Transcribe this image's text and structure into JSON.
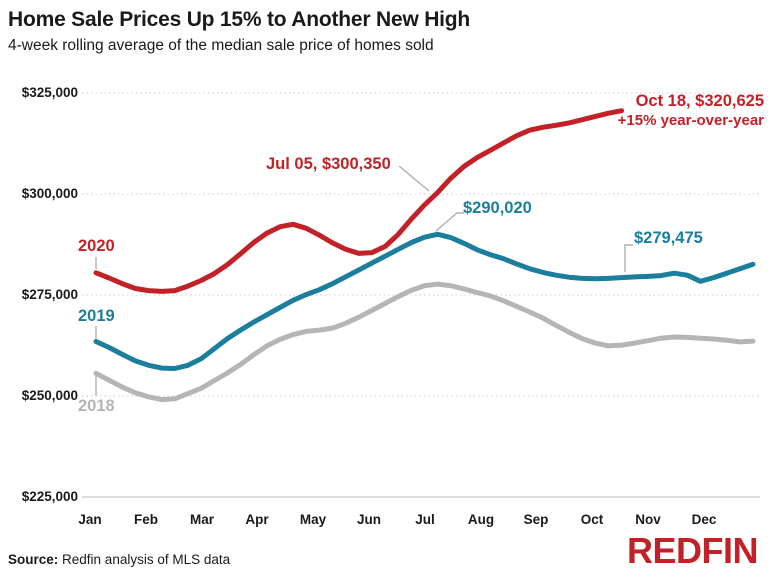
{
  "header": {
    "title": "Home Sale Prices Up 15% to Another New High",
    "subtitle": "4-week rolling average of the median sale price of homes sold"
  },
  "footer": {
    "source_label": "Source:",
    "source_text": "Redfin analysis of MLS data",
    "logo_text": "REDFIN"
  },
  "colors": {
    "red": "#c22127",
    "teal": "#1b7e9d",
    "gray": "#b5b5b5",
    "grid": "#d6d6d6",
    "axis_line": "#c8c8c8",
    "leader": "#b0b0b0",
    "text_dark": "#1a1a1a"
  },
  "chart_data": {
    "type": "line",
    "title": "Home Sale Prices Up 15% to Another New High",
    "subtitle": "4-week rolling average of the median sale price of homes sold",
    "xlabel": "",
    "ylabel": "",
    "grid": "dotted horizontal gridlines",
    "legend_position": "inline labels at left of each line",
    "ylim": [
      225000,
      325000
    ],
    "y_tick_labels": [
      "$325,000",
      "$300,000",
      "$275,000",
      "$250,000",
      "$225,000"
    ],
    "y_tick_values": [
      325000,
      300000,
      275000,
      250000,
      225000
    ],
    "x_ticks": [
      "Jan",
      "Feb",
      "Mar",
      "Apr",
      "May",
      "Jun",
      "Jul",
      "Aug",
      "Sep",
      "Oct",
      "Nov",
      "Dec"
    ],
    "x_unit": "weekly points, Jan through late December",
    "annotations": {
      "jul05_2020": "Jul 05, $300,350",
      "oct18_2020": "Oct 18, $320,625",
      "oct18_2020_sub": "+15% year-over-year",
      "peak_2019": "$290,020",
      "late_2019": "$279,475"
    },
    "series": [
      {
        "name": "2018",
        "color": "#b5b5b5",
        "values": [
          255600,
          253900,
          252200,
          250800,
          249800,
          249100,
          249300,
          250600,
          251900,
          253800,
          255700,
          257800,
          260200,
          262400,
          264000,
          265200,
          266000,
          266300,
          266800,
          268000,
          269500,
          271200,
          272900,
          274600,
          276200,
          277300,
          277700,
          277300,
          276500,
          275600,
          274800,
          273600,
          272200,
          270800,
          269300,
          267500,
          265800,
          264200,
          263100,
          262400,
          262600,
          263100,
          263700,
          264300,
          264600,
          264500,
          264300,
          264100,
          263800,
          263400,
          263600
        ]
      },
      {
        "name": "2019",
        "color": "#1b7e9d",
        "values": [
          263500,
          262000,
          260300,
          258700,
          257600,
          256900,
          256800,
          257600,
          259200,
          261700,
          264200,
          266300,
          268300,
          270100,
          271900,
          273700,
          275100,
          276300,
          277800,
          279500,
          281200,
          282900,
          284600,
          286300,
          288000,
          289300,
          290020,
          289200,
          287800,
          286200,
          285000,
          284000,
          282700,
          281500,
          280600,
          279900,
          279400,
          279100,
          279000,
          279100,
          279300,
          279475,
          279600,
          279800,
          280400,
          279900,
          278400,
          279300,
          280400,
          281500,
          282600
        ]
      },
      {
        "name": "2020",
        "color": "#c22127",
        "values": [
          280500,
          279200,
          277800,
          276600,
          276100,
          275900,
          276100,
          277200,
          278600,
          280300,
          282500,
          285200,
          288000,
          290300,
          291900,
          292500,
          291500,
          289800,
          287900,
          286300,
          285300,
          285500,
          287000,
          290000,
          293800,
          297300,
          300350,
          303900,
          306800,
          309000,
          310800,
          312600,
          314400,
          315800,
          316500,
          317000,
          317600,
          318400,
          319200,
          320000,
          320625
        ]
      }
    ]
  }
}
